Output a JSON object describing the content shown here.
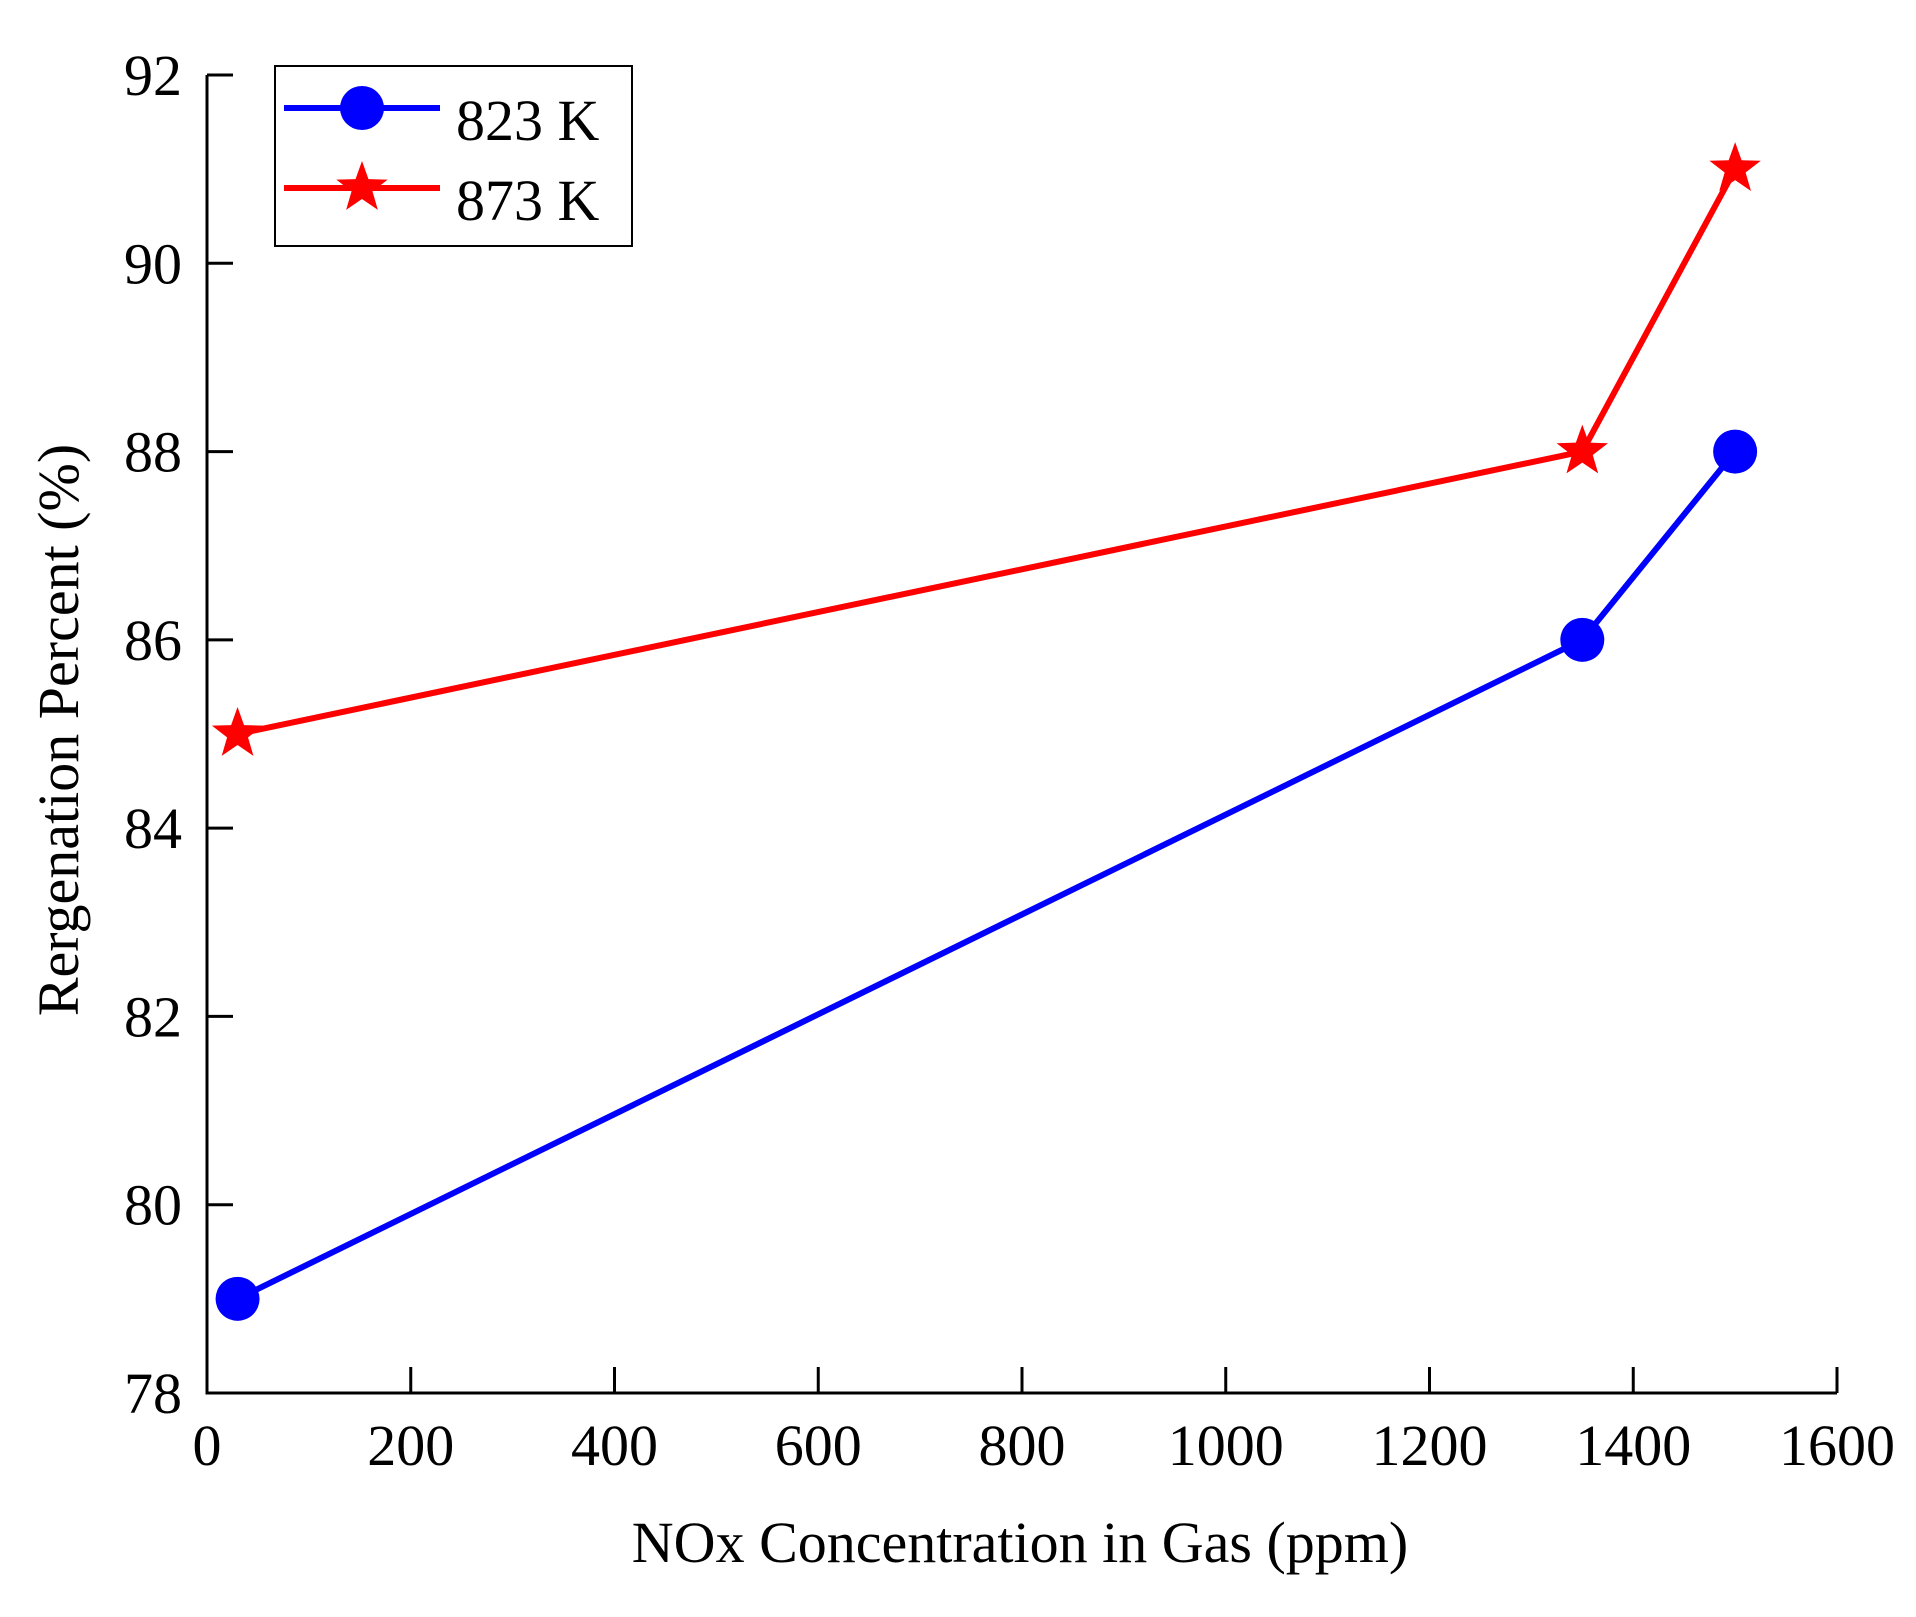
{
  "chart_data": {
    "type": "line",
    "title": "",
    "xlabel": "NOx Concentration in Gas (ppm)",
    "ylabel": "Rergenation Percent (%)",
    "xlim": [
      0,
      1600
    ],
    "ylim": [
      78,
      92
    ],
    "xticks": [
      0,
      200,
      400,
      600,
      800,
      1000,
      1200,
      1400,
      1600
    ],
    "yticks": [
      78,
      80,
      82,
      84,
      86,
      88,
      90,
      92
    ],
    "xtick_labels": [
      "0",
      "200",
      "400",
      "600",
      "800",
      "1000",
      "1200",
      "1400",
      "1600"
    ],
    "ytick_labels": [
      "78",
      "80",
      "82",
      "84",
      "86",
      "88",
      "90",
      "92"
    ],
    "grid": false,
    "legend_position": "top-left",
    "series": [
      {
        "name": "823 K",
        "color": "#0000ff",
        "marker": "circle",
        "x": [
          30,
          1350,
          1500
        ],
        "y": [
          79,
          86,
          88
        ]
      },
      {
        "name": "873 K",
        "color": "#ff0000",
        "marker": "star",
        "x": [
          30,
          1350,
          1500
        ],
        "y": [
          85,
          88,
          91
        ]
      }
    ]
  }
}
